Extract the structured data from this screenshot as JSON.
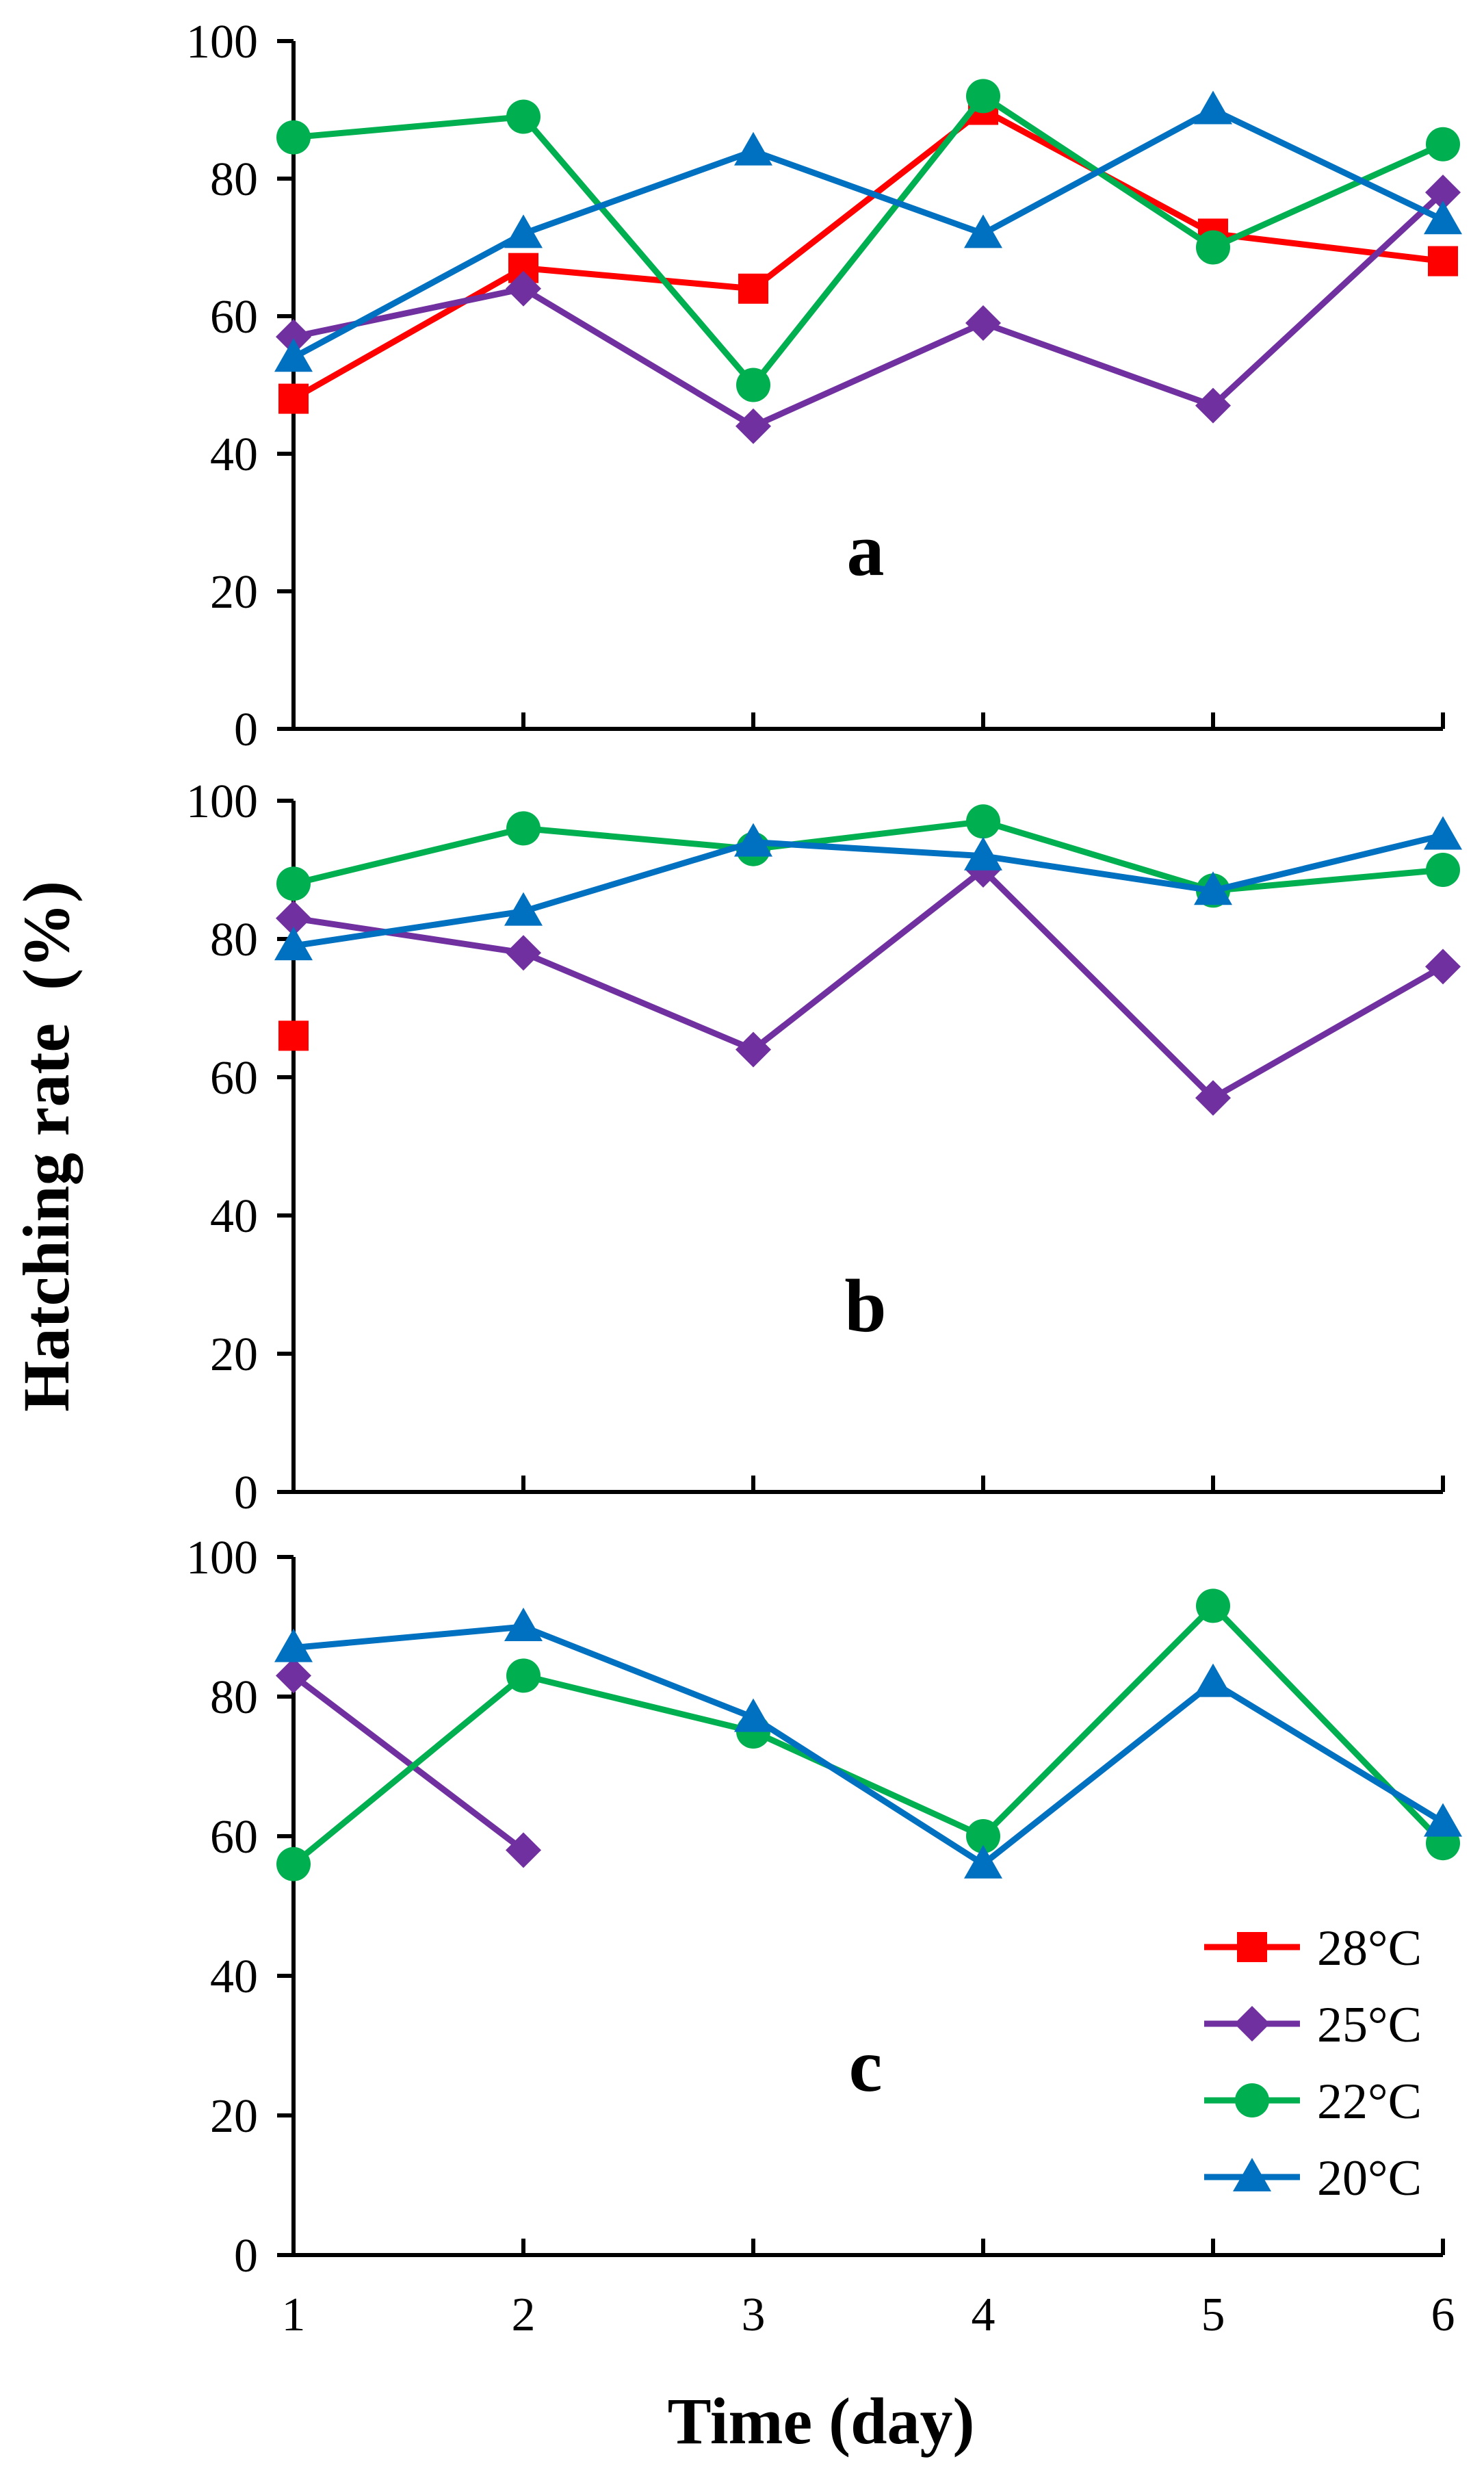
{
  "figure": {
    "ylabel": "Hatching rate  (%)",
    "xlabel": "Time (day)"
  },
  "legend": {
    "placement": "bottom-right of panel c",
    "entries": [
      {
        "name": "28°C",
        "marker": "square",
        "color": "#ff0000"
      },
      {
        "name": "25°C",
        "marker": "diamond",
        "color": "#7030a0"
      },
      {
        "name": "22°C",
        "marker": "circle",
        "color": "#00b050"
      },
      {
        "name": "20°C",
        "marker": "triangle",
        "color": "#0070c0"
      }
    ]
  },
  "chart_data": [
    {
      "type": "line",
      "panel_label": "a",
      "x": [
        1,
        2,
        3,
        4,
        5,
        6
      ],
      "xlim": [
        1,
        6
      ],
      "ylim": [
        0,
        100
      ],
      "xticks": [
        "1",
        "2",
        "3",
        "4",
        "5",
        "6"
      ],
      "yticks": [
        "0",
        "20",
        "40",
        "60",
        "80",
        "100"
      ],
      "grid": false,
      "series": [
        {
          "name": "28°C",
          "color": "#ff0000",
          "marker": "square",
          "values": [
            48,
            67,
            64,
            90,
            72,
            68
          ]
        },
        {
          "name": "25°C",
          "color": "#7030a0",
          "marker": "diamond",
          "values": [
            57,
            64,
            44,
            59,
            47,
            78
          ]
        },
        {
          "name": "22°C",
          "color": "#00b050",
          "marker": "circle",
          "values": [
            86,
            89,
            50,
            92,
            70,
            85
          ]
        },
        {
          "name": "20°C",
          "color": "#0070c0",
          "marker": "triangle",
          "values": [
            54,
            72,
            84,
            72,
            90,
            74
          ]
        }
      ]
    },
    {
      "type": "line",
      "panel_label": "b",
      "x": [
        1,
        2,
        3,
        4,
        5,
        6
      ],
      "xlim": [
        1,
        6
      ],
      "ylim": [
        0,
        100
      ],
      "xticks": [
        "1",
        "2",
        "3",
        "4",
        "5",
        "6"
      ],
      "yticks": [
        "0",
        "20",
        "40",
        "60",
        "80",
        "100"
      ],
      "grid": false,
      "series": [
        {
          "name": "28°C",
          "color": "#ff0000",
          "marker": "square",
          "values": [
            66,
            null,
            null,
            null,
            null,
            null
          ]
        },
        {
          "name": "25°C",
          "color": "#7030a0",
          "marker": "diamond",
          "values": [
            83,
            78,
            64,
            90,
            57,
            76
          ]
        },
        {
          "name": "22°C",
          "color": "#00b050",
          "marker": "circle",
          "values": [
            88,
            96,
            93,
            97,
            87,
            90
          ]
        },
        {
          "name": "20°C",
          "color": "#0070c0",
          "marker": "triangle",
          "values": [
            79,
            84,
            94,
            92,
            87,
            95
          ]
        }
      ]
    },
    {
      "type": "line",
      "panel_label": "c",
      "x": [
        1,
        2,
        3,
        4,
        5,
        6
      ],
      "xlim": [
        1,
        6
      ],
      "ylim": [
        0,
        100
      ],
      "xticks": [
        "1",
        "2",
        "3",
        "4",
        "5",
        "6"
      ],
      "yticks": [
        "0",
        "20",
        "40",
        "60",
        "80",
        "100"
      ],
      "grid": false,
      "series": [
        {
          "name": "25°C",
          "color": "#7030a0",
          "marker": "diamond",
          "values": [
            83,
            58,
            null,
            null,
            null,
            null
          ]
        },
        {
          "name": "22°C",
          "color": "#00b050",
          "marker": "circle",
          "values": [
            56,
            83,
            75,
            60,
            93,
            59
          ]
        },
        {
          "name": "20°C",
          "color": "#0070c0",
          "marker": "triangle",
          "values": [
            87,
            90,
            77,
            56,
            82,
            62
          ]
        }
      ]
    }
  ]
}
